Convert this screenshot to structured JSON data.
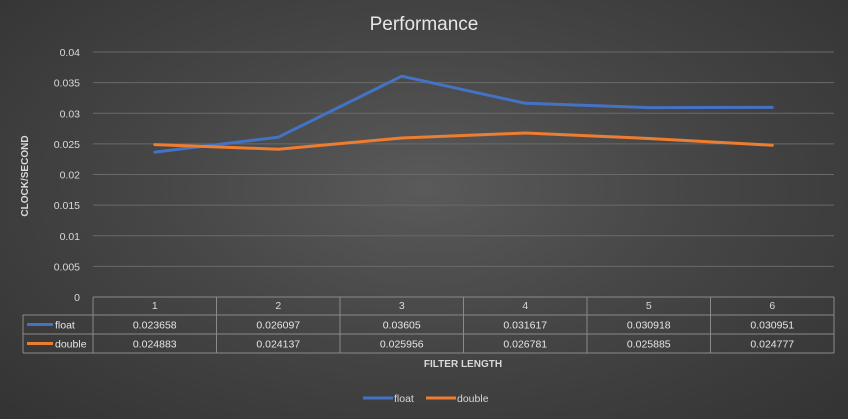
{
  "chart_data": {
    "type": "line",
    "title": "Performance",
    "xlabel": "FILTER LENGTH",
    "ylabel": "CLOCK/SECOND",
    "categories": [
      "1",
      "2",
      "3",
      "4",
      "5",
      "6"
    ],
    "ylim": [
      0,
      0.04
    ],
    "yticks": [
      "0",
      "0.005",
      "0.01",
      "0.015",
      "0.02",
      "0.025",
      "0.03",
      "0.035",
      "0.04"
    ],
    "grid": true,
    "legend": "bottom",
    "data_table": true,
    "series": [
      {
        "name": "float",
        "color": "#4472C4",
        "values": [
          0.023658,
          0.026097,
          0.03605,
          0.031617,
          0.030918,
          0.030951
        ],
        "labels": [
          "0.023658",
          "0.026097",
          "0.03605",
          "0.031617",
          "0.030918",
          "0.030951"
        ]
      },
      {
        "name": "double",
        "color": "#ED7D31",
        "values": [
          0.024883,
          0.024137,
          0.025956,
          0.026781,
          0.025885,
          0.024777
        ],
        "labels": [
          "0.024883",
          "0.024137",
          "0.025956",
          "0.026781",
          "0.025885",
          "0.024777"
        ]
      }
    ]
  }
}
